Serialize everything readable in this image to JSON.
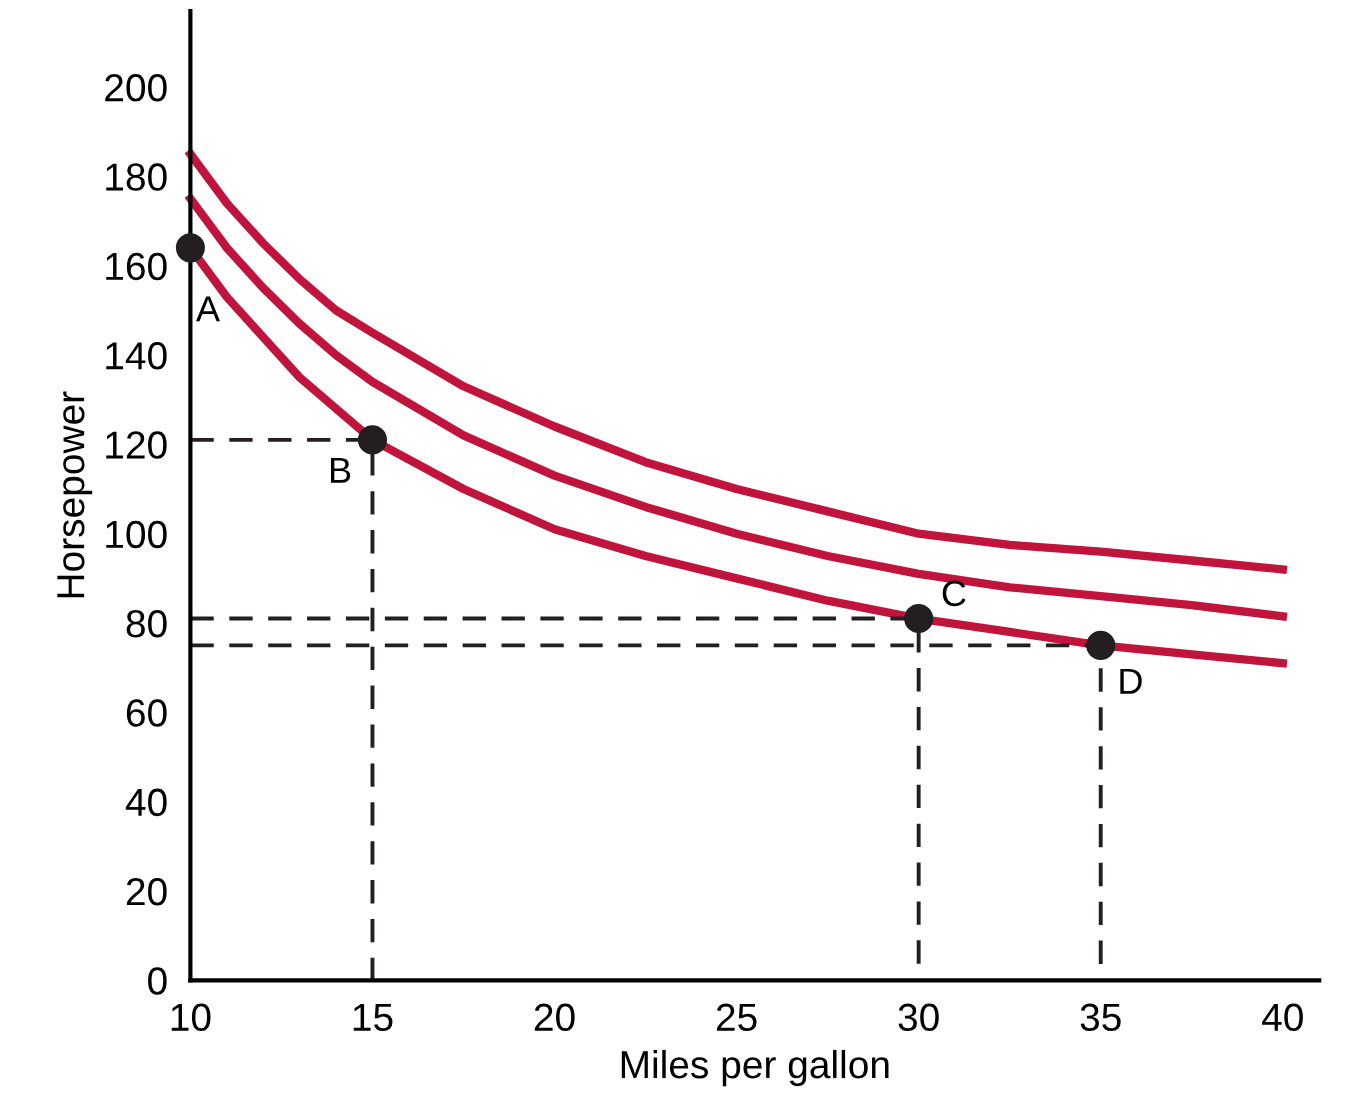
{
  "chart_data": {
    "type": "line",
    "xlabel": "Miles per gallon",
    "ylabel": "Horsepower",
    "xlim": [
      10,
      41
    ],
    "ylim": [
      0,
      217
    ],
    "xticks": [
      10,
      15,
      20,
      25,
      30,
      35,
      40
    ],
    "yticks": [
      0,
      20,
      40,
      60,
      80,
      100,
      120,
      140,
      160,
      180,
      200
    ],
    "grid": false,
    "legend": false,
    "line_style": "solid",
    "series": [
      {
        "color": "#c0143c",
        "x": [
          10,
          11,
          12,
          13,
          14,
          15,
          17.5,
          20,
          22.5,
          25,
          27.5,
          30,
          32.5,
          35,
          37.5,
          40
        ],
        "values": [
          185,
          174,
          165,
          157,
          150,
          145,
          133,
          124,
          116,
          110,
          105,
          100,
          97.5,
          96,
          94,
          92
        ]
      },
      {
        "color": "#c0143c",
        "x": [
          10,
          11,
          12,
          13,
          14,
          15,
          17.5,
          20,
          22.5,
          25,
          27.5,
          30,
          32.5,
          35,
          37.5,
          40
        ],
        "values": [
          175,
          164,
          155,
          147,
          140,
          134,
          122,
          113,
          106,
          100,
          95,
          91,
          88,
          86,
          84,
          81.5
        ]
      },
      {
        "color": "#c0143c",
        "x": [
          10,
          11,
          12,
          13,
          14,
          15,
          17.5,
          20,
          22.5,
          25,
          27.5,
          30,
          32.5,
          35,
          37.5,
          40
        ],
        "values": [
          164,
          153,
          144,
          135,
          128,
          121,
          110,
          101,
          95,
          90,
          85,
          81,
          78,
          75,
          73,
          71
        ]
      },
      {
        "type": "line",
        "line_style": "dashed",
        "color": "#231f20",
        "x": [
          10,
          15,
          15
        ],
        "values": [
          121,
          121,
          0
        ]
      },
      {
        "type": "line",
        "line_style": "dashed",
        "color": "#231f20",
        "x": [
          10,
          30,
          30
        ],
        "values": [
          81,
          81,
          0
        ]
      },
      {
        "type": "line",
        "line_style": "dashed",
        "color": "#231f20",
        "x": [
          10,
          35,
          35
        ],
        "values": [
          75,
          75,
          0
        ]
      },
      {
        "type": "scatter",
        "marker": "circle",
        "color": "#231f20",
        "x": [
          10,
          15,
          30,
          35
        ],
        "values": [
          164,
          121,
          81,
          75
        ]
      }
    ],
    "annotations": [
      {
        "text": "A",
        "x": 10,
        "y": 164
      },
      {
        "text": "B",
        "x": 15,
        "y": 121
      },
      {
        "text": "C",
        "x": 30,
        "y": 81
      },
      {
        "text": "D",
        "x": 35,
        "y": 75
      }
    ]
  }
}
